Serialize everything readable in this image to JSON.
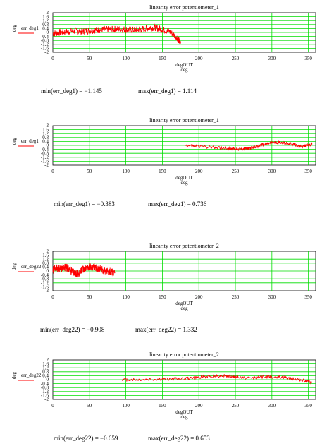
{
  "chart_data": [
    {
      "type": "line",
      "title": "linearity error potentiometer_1",
      "ylabel": "deg",
      "xlabel": "degOUT",
      "xunit": "deg",
      "legend": "err_deg1",
      "legend_placement": "left",
      "grid": true,
      "xlim": [
        0,
        360
      ],
      "ylim": [
        -2,
        2
      ],
      "xticks": [
        "0",
        "50",
        "100",
        "150",
        "200",
        "250",
        "300",
        "350"
      ],
      "yticks": [
        "2",
        "1.6",
        "1.2",
        "0.8",
        "0.4",
        "0",
        "-0.4",
        "-0.8",
        "-1.2",
        "-1.6",
        "-2"
      ],
      "series": [
        {
          "name": "err_deg1",
          "color": "#ff0000",
          "x": [
            0,
            10,
            20,
            30,
            40,
            50,
            60,
            70,
            80,
            90,
            100,
            110,
            120,
            130,
            140,
            150,
            160,
            170,
            175
          ],
          "y": [
            -0.1,
            0.0,
            0.1,
            0.15,
            0.1,
            0.2,
            0.25,
            0.3,
            0.3,
            0.35,
            0.3,
            0.25,
            0.3,
            0.45,
            0.5,
            0.3,
            0.1,
            -0.5,
            -1.1
          ],
          "noise": 0.35
        }
      ],
      "stats": {
        "min_label": "min(err_deg1) = −1.145",
        "max_label": "max(err_deg1) = 1.114"
      }
    },
    {
      "type": "line",
      "title": "linearity error potentiometer_1",
      "ylabel": "deg",
      "xlabel": "degOUT",
      "xunit": "deg",
      "legend": "err_deg1",
      "legend_placement": "left",
      "grid": true,
      "xlim": [
        0,
        360
      ],
      "ylim": [
        -2,
        2
      ],
      "xticks": [
        "0",
        "50",
        "100",
        "150",
        "200",
        "250",
        "300",
        "350"
      ],
      "yticks": [
        "2",
        "1.6",
        "1.2",
        "0.8",
        "0.4",
        "0",
        "-0.4",
        "-0.8",
        "-1.2",
        "-1.6",
        "-2"
      ],
      "series": [
        {
          "name": "err_deg1",
          "color": "#ff0000",
          "x": [
            182,
            200,
            220,
            240,
            250,
            260,
            270,
            280,
            290,
            300,
            310,
            320,
            330,
            340,
            350,
            355
          ],
          "y": [
            0.0,
            -0.1,
            -0.2,
            -0.3,
            -0.35,
            -0.38,
            -0.3,
            -0.1,
            0.1,
            0.25,
            0.3,
            0.2,
            0.1,
            -0.1,
            0.0,
            0.1
          ],
          "noise": 0.15
        }
      ],
      "stats": {
        "min_label": "min(err_deg1) = −0.383",
        "max_label": "max(err_deg1) = 0.736"
      }
    },
    {
      "type": "line",
      "title": "linearity error potentiometer_2",
      "ylabel": "deg",
      "xlabel": "degOUT",
      "xunit": "deg",
      "legend": "err_deg22",
      "legend_placement": "left",
      "grid": true,
      "xlim": [
        0,
        360
      ],
      "ylim": [
        -2,
        2
      ],
      "xticks": [
        "0",
        "50",
        "100",
        "150",
        "200",
        "250",
        "300",
        "350"
      ],
      "yticks": [
        "2",
        "1.6",
        "1.2",
        "0.8",
        "0.4",
        "0",
        "-0.4",
        "-0.8",
        "-1.2",
        "-1.6",
        "-2"
      ],
      "series": [
        {
          "name": "err_deg22",
          "color": "#ff0000",
          "x": [
            0,
            5,
            10,
            15,
            20,
            25,
            30,
            35,
            40,
            45,
            50,
            55,
            60,
            65,
            70,
            75,
            80,
            85
          ],
          "y": [
            0.1,
            0.3,
            0.2,
            0.4,
            0.3,
            0.0,
            -0.2,
            -0.3,
            0.1,
            0.3,
            0.4,
            0.3,
            0.3,
            0.2,
            0.1,
            0.0,
            -0.1,
            -0.2
          ],
          "noise": 0.4
        }
      ],
      "stats": {
        "min_label": "min(err_deg22) = −0.908",
        "max_label": "max(err_deg22) = 1.332"
      }
    },
    {
      "type": "line",
      "title": "linearity error potentiometer_2",
      "ylabel": "deg",
      "xlabel": "degOUT",
      "xunit": "deg",
      "legend": "err_deg22",
      "legend_placement": "left",
      "grid": true,
      "xlim": [
        0,
        360
      ],
      "ylim": [
        -2,
        2
      ],
      "xticks": [
        "0",
        "50",
        "100",
        "150",
        "200",
        "250",
        "300",
        "350"
      ],
      "yticks": [
        "2",
        "1.6",
        "1.2",
        "0.8",
        "0.4",
        "0",
        "-0.4",
        "-0.8",
        "-1.2",
        "-1.6",
        "-2"
      ],
      "series": [
        {
          "name": "err_deg22",
          "color": "#ff0000",
          "x": [
            95,
            120,
            150,
            180,
            200,
            220,
            235,
            250,
            270,
            290,
            310,
            330,
            345,
            355
          ],
          "y": [
            0.0,
            0.0,
            0.05,
            0.1,
            0.25,
            0.35,
            0.4,
            0.25,
            0.15,
            0.3,
            0.25,
            0.1,
            -0.1,
            -0.3
          ],
          "noise": 0.15
        }
      ],
      "stats": {
        "min_label": "min(err_deg22) = −0.659",
        "max_label": "max(err_deg22) = 0.653"
      }
    }
  ]
}
